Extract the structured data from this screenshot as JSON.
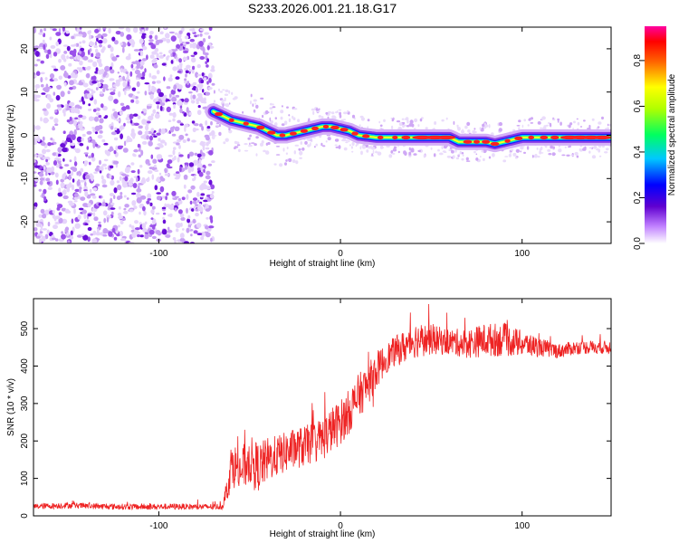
{
  "title": "S233.2026.001.21.18.G17",
  "chart_data": [
    {
      "type": "heatmap",
      "title": "S233.2026.001.21.18.G17",
      "xlabel": "Height of straight line (km)",
      "ylabel": "Frequency (Hz)",
      "xlim": [
        -169,
        149
      ],
      "ylim": [
        -25,
        25
      ],
      "xticks": [
        -100,
        0,
        100
      ],
      "yticks": [
        -20,
        -10,
        0,
        10,
        20
      ],
      "noise_region_x": [
        -169,
        -70
      ],
      "ridge": {
        "x": [
          -70,
          -65,
          -60,
          -55,
          -50,
          -45,
          -40,
          -35,
          -30,
          -25,
          -20,
          -15,
          -10,
          -5,
          0,
          5,
          10,
          20,
          30,
          40,
          50,
          60,
          65,
          70,
          75,
          80,
          85,
          90,
          95,
          100,
          110,
          120,
          130,
          140,
          149
        ],
        "freq": [
          5.5,
          4.5,
          3.5,
          3,
          2.5,
          2,
          1,
          0,
          0,
          0.5,
          1,
          1.5,
          2,
          2,
          1.5,
          1,
          0,
          -0.5,
          -0.5,
          -0.5,
          -0.5,
          -0.5,
          -1.5,
          -1.5,
          -1.5,
          -1.5,
          -2,
          -1.5,
          -1,
          -0.5,
          -0.5,
          -0.5,
          -0.5,
          -0.5,
          -0.5
        ]
      },
      "colorbar": {
        "label": "Normalized spectral amplitude",
        "range": [
          0.0,
          0.95
        ],
        "ticks": [
          0.0,
          0.2,
          0.4,
          0.6,
          0.8
        ],
        "tick_labels": [
          "0.0",
          "0.2",
          "0.4",
          "0.6",
          "0.8"
        ]
      }
    },
    {
      "type": "line",
      "xlabel": "Height of straight line (km)",
      "ylabel": "SNR (10 * v/v)",
      "xlim": [
        -169,
        149
      ],
      "ylim": [
        0,
        580
      ],
      "xticks": [
        -100,
        0,
        100
      ],
      "yticks": [
        0,
        100,
        200,
        300,
        400,
        500
      ],
      "color": "#ee2222",
      "series": [
        {
          "name": "SNR",
          "x": [
            -169,
            -150,
            -130,
            -110,
            -90,
            -75,
            -65,
            -62,
            -60,
            -55,
            -50,
            -45,
            -40,
            -35,
            -30,
            -25,
            -20,
            -15,
            -10,
            -5,
            0,
            5,
            10,
            15,
            20,
            25,
            30,
            35,
            40,
            45,
            50,
            60,
            70,
            80,
            90,
            100,
            110,
            120,
            130,
            140,
            149
          ],
          "mean": [
            25,
            28,
            25,
            24,
            25,
            24,
            25,
            80,
            140,
            120,
            150,
            130,
            150,
            160,
            170,
            180,
            185,
            195,
            205,
            230,
            250,
            280,
            320,
            350,
            390,
            420,
            440,
            450,
            470,
            470,
            470,
            465,
            460,
            470,
            470,
            460,
            450,
            440,
            450,
            450,
            450
          ],
          "noise": [
            8,
            8,
            8,
            8,
            8,
            8,
            8,
            40,
            60,
            60,
            65,
            65,
            60,
            55,
            55,
            55,
            55,
            55,
            60,
            60,
            60,
            60,
            60,
            55,
            50,
            40,
            40,
            45,
            50,
            45,
            40,
            35,
            40,
            45,
            45,
            35,
            25,
            20,
            18,
            18,
            18
          ]
        }
      ]
    }
  ]
}
